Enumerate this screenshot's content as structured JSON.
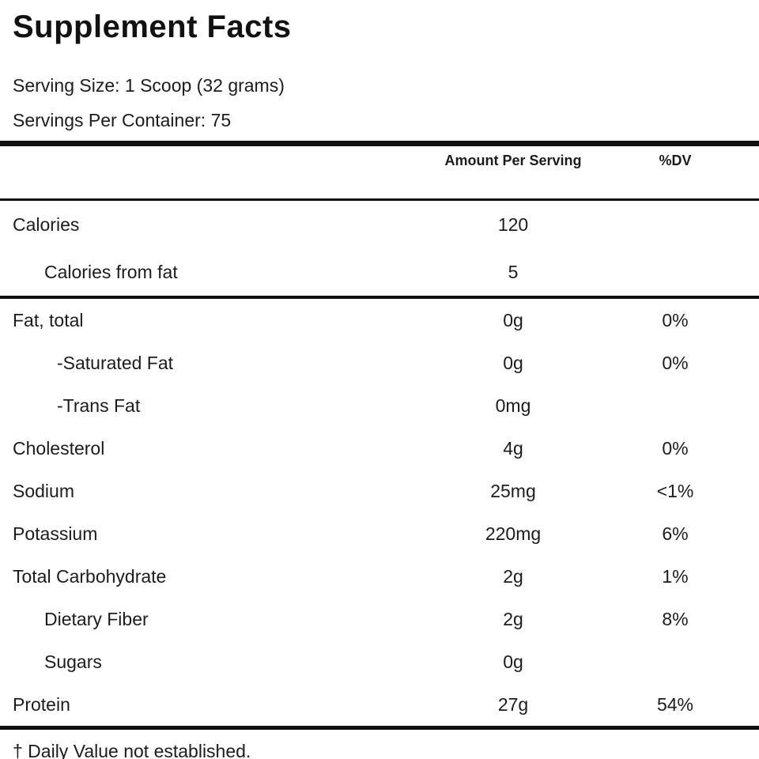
{
  "label": {
    "title": "Supplement Facts",
    "serving_size": "Serving Size: 1 Scoop (32 grams)",
    "servings_per_container": "Servings Per Container: 75",
    "columns": {
      "amount": "Amount Per Serving",
      "dv": "%DV"
    },
    "rows": [
      {
        "name": "Calories",
        "amount": "120",
        "dv": "",
        "indent": 0,
        "tall": true,
        "rule_after": false
      },
      {
        "name": "Calories from fat",
        "amount": "5",
        "dv": "",
        "indent": 1,
        "tall": true,
        "rule_after": true
      },
      {
        "name": "Fat, total",
        "amount": "0g",
        "dv": "0%",
        "indent": 0,
        "tall": false,
        "rule_after": false
      },
      {
        "name": "-Saturated Fat",
        "amount": "0g",
        "dv": "0%",
        "indent": 2,
        "tall": false,
        "rule_after": false
      },
      {
        "name": "-Trans Fat",
        "amount": "0mg",
        "dv": "",
        "indent": 2,
        "tall": false,
        "rule_after": false
      },
      {
        "name": "Cholesterol",
        "amount": "4g",
        "dv": "0%",
        "indent": 0,
        "tall": false,
        "rule_after": false
      },
      {
        "name": "Sodium",
        "amount": "25mg",
        "dv": "<1%",
        "indent": 0,
        "tall": false,
        "rule_after": false
      },
      {
        "name": "Potassium",
        "amount": "220mg",
        "dv": "6%",
        "indent": 0,
        "tall": false,
        "rule_after": false
      },
      {
        "name": "Total Carbohydrate",
        "amount": "2g",
        "dv": "1%",
        "indent": 0,
        "tall": false,
        "rule_after": false
      },
      {
        "name": "Dietary Fiber",
        "amount": "2g",
        "dv": "8%",
        "indent": 1,
        "tall": false,
        "rule_after": false
      },
      {
        "name": "Sugars",
        "amount": "0g",
        "dv": "",
        "indent": 1,
        "tall": false,
        "rule_after": false
      },
      {
        "name": "Protein",
        "amount": "27g",
        "dv": "54%",
        "indent": 0,
        "tall": false,
        "rule_after": false
      }
    ],
    "footnote": "† Daily Value not established."
  }
}
